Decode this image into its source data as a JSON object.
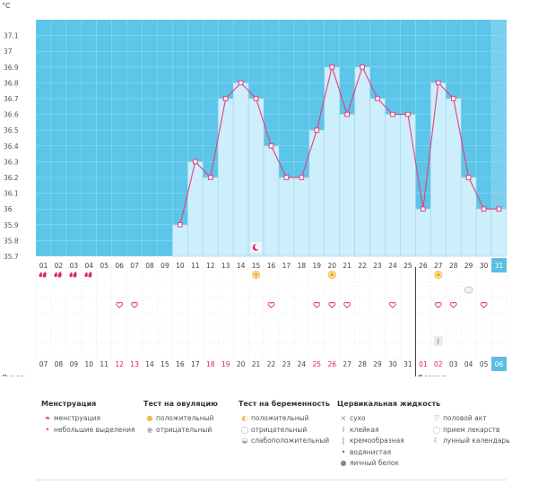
{
  "chart_data": {
    "type": "bar",
    "unit_label": "°C",
    "ylim": [
      35.7,
      37.2
    ],
    "y_ticks": [
      "37.1",
      "37",
      "36.9",
      "36.8",
      "36.7",
      "36.6",
      "36.5",
      "36.4",
      "36.3",
      "36.2",
      "36.1",
      "36",
      "35.9",
      "35.8",
      "35.7"
    ],
    "cycle_days": [
      "01",
      "02",
      "03",
      "04",
      "05",
      "06",
      "07",
      "08",
      "09",
      "10",
      "11",
      "12",
      "13",
      "14",
      "15",
      "16",
      "17",
      "18",
      "19",
      "20",
      "21",
      "22",
      "23",
      "24",
      "25",
      "26",
      "27",
      "28",
      "29",
      "30",
      "31"
    ],
    "dates": [
      "07",
      "08",
      "09",
      "10",
      "11",
      "12",
      "13",
      "14",
      "15",
      "16",
      "17",
      "18",
      "19",
      "20",
      "21",
      "22",
      "23",
      "24",
      "25",
      "26",
      "27",
      "28",
      "29",
      "30",
      "31",
      "01",
      "02",
      "03",
      "04",
      "05",
      "06"
    ],
    "weekend_dates": [
      5,
      6,
      11,
      12,
      18,
      19,
      25,
      26
    ],
    "current_index": 30,
    "values": [
      null,
      null,
      null,
      null,
      null,
      null,
      null,
      null,
      null,
      35.9,
      36.3,
      36.2,
      36.7,
      36.8,
      36.7,
      36.4,
      36.2,
      36.2,
      36.5,
      36.9,
      36.6,
      36.9,
      36.7,
      36.6,
      36.6,
      36.0,
      36.8,
      36.7,
      36.2,
      36.0,
      36.0
    ],
    "month_labels": [
      {
        "label": "Январь",
        "index": 0
      },
      {
        "label": "Февраль",
        "index": 25
      }
    ],
    "markers": {
      "menstruation_days": [
        0,
        1,
        2,
        3
      ],
      "ovulation_positive_days": [
        14,
        19,
        26
      ],
      "sex_days": [
        5,
        6,
        15,
        18,
        19,
        20,
        23,
        26,
        27,
        29
      ],
      "pill_days": [
        28
      ],
      "lunar_days": [
        14
      ],
      "sticky_days": [
        26
      ]
    }
  },
  "legend": [
    {
      "title": "Менструация",
      "items": [
        {
          "icon": "drop-full-icon",
          "label": "менструация"
        },
        {
          "icon": "drop-small-icon",
          "label": "небольшие выделения"
        }
      ]
    },
    {
      "title": "Тест на овуляцию",
      "items": [
        {
          "icon": "sun-positive-icon",
          "label": "положительный"
        },
        {
          "icon": "sun-negative-icon",
          "label": "отрицательный"
        }
      ]
    },
    {
      "title": "Тест на беременность",
      "items": [
        {
          "icon": "test-positive-icon",
          "label": "положительный"
        },
        {
          "icon": "test-negative-icon",
          "label": "отрицательный"
        },
        {
          "icon": "test-weak-icon",
          "label": "слабоположительный"
        }
      ]
    },
    {
      "title": "Цервикальная жидкость",
      "items": [
        {
          "icon": "cross-icon",
          "label": "сухо"
        },
        {
          "icon": "sticky-icon",
          "label": "клейкая"
        },
        {
          "icon": "creamy-icon",
          "label": "кремообразная"
        },
        {
          "icon": "watery-icon",
          "label": "водянистая"
        },
        {
          "icon": "eggwhite-icon",
          "label": "яичный белок"
        }
      ]
    },
    {
      "title": "",
      "items": [
        {
          "icon": "heart-icon",
          "label": "половой акт"
        },
        {
          "icon": "pill-icon",
          "label": "прием лекарств"
        },
        {
          "icon": "moon-icon",
          "label": "лунный календарь"
        }
      ]
    }
  ],
  "colors": {
    "sky": "#5bc5ea",
    "bar": "#cdeefb",
    "bar_edge": "#9fd6ee",
    "line": "#e83d7a",
    "weekend": "#e2185b",
    "highlight": "#5bbde3"
  }
}
